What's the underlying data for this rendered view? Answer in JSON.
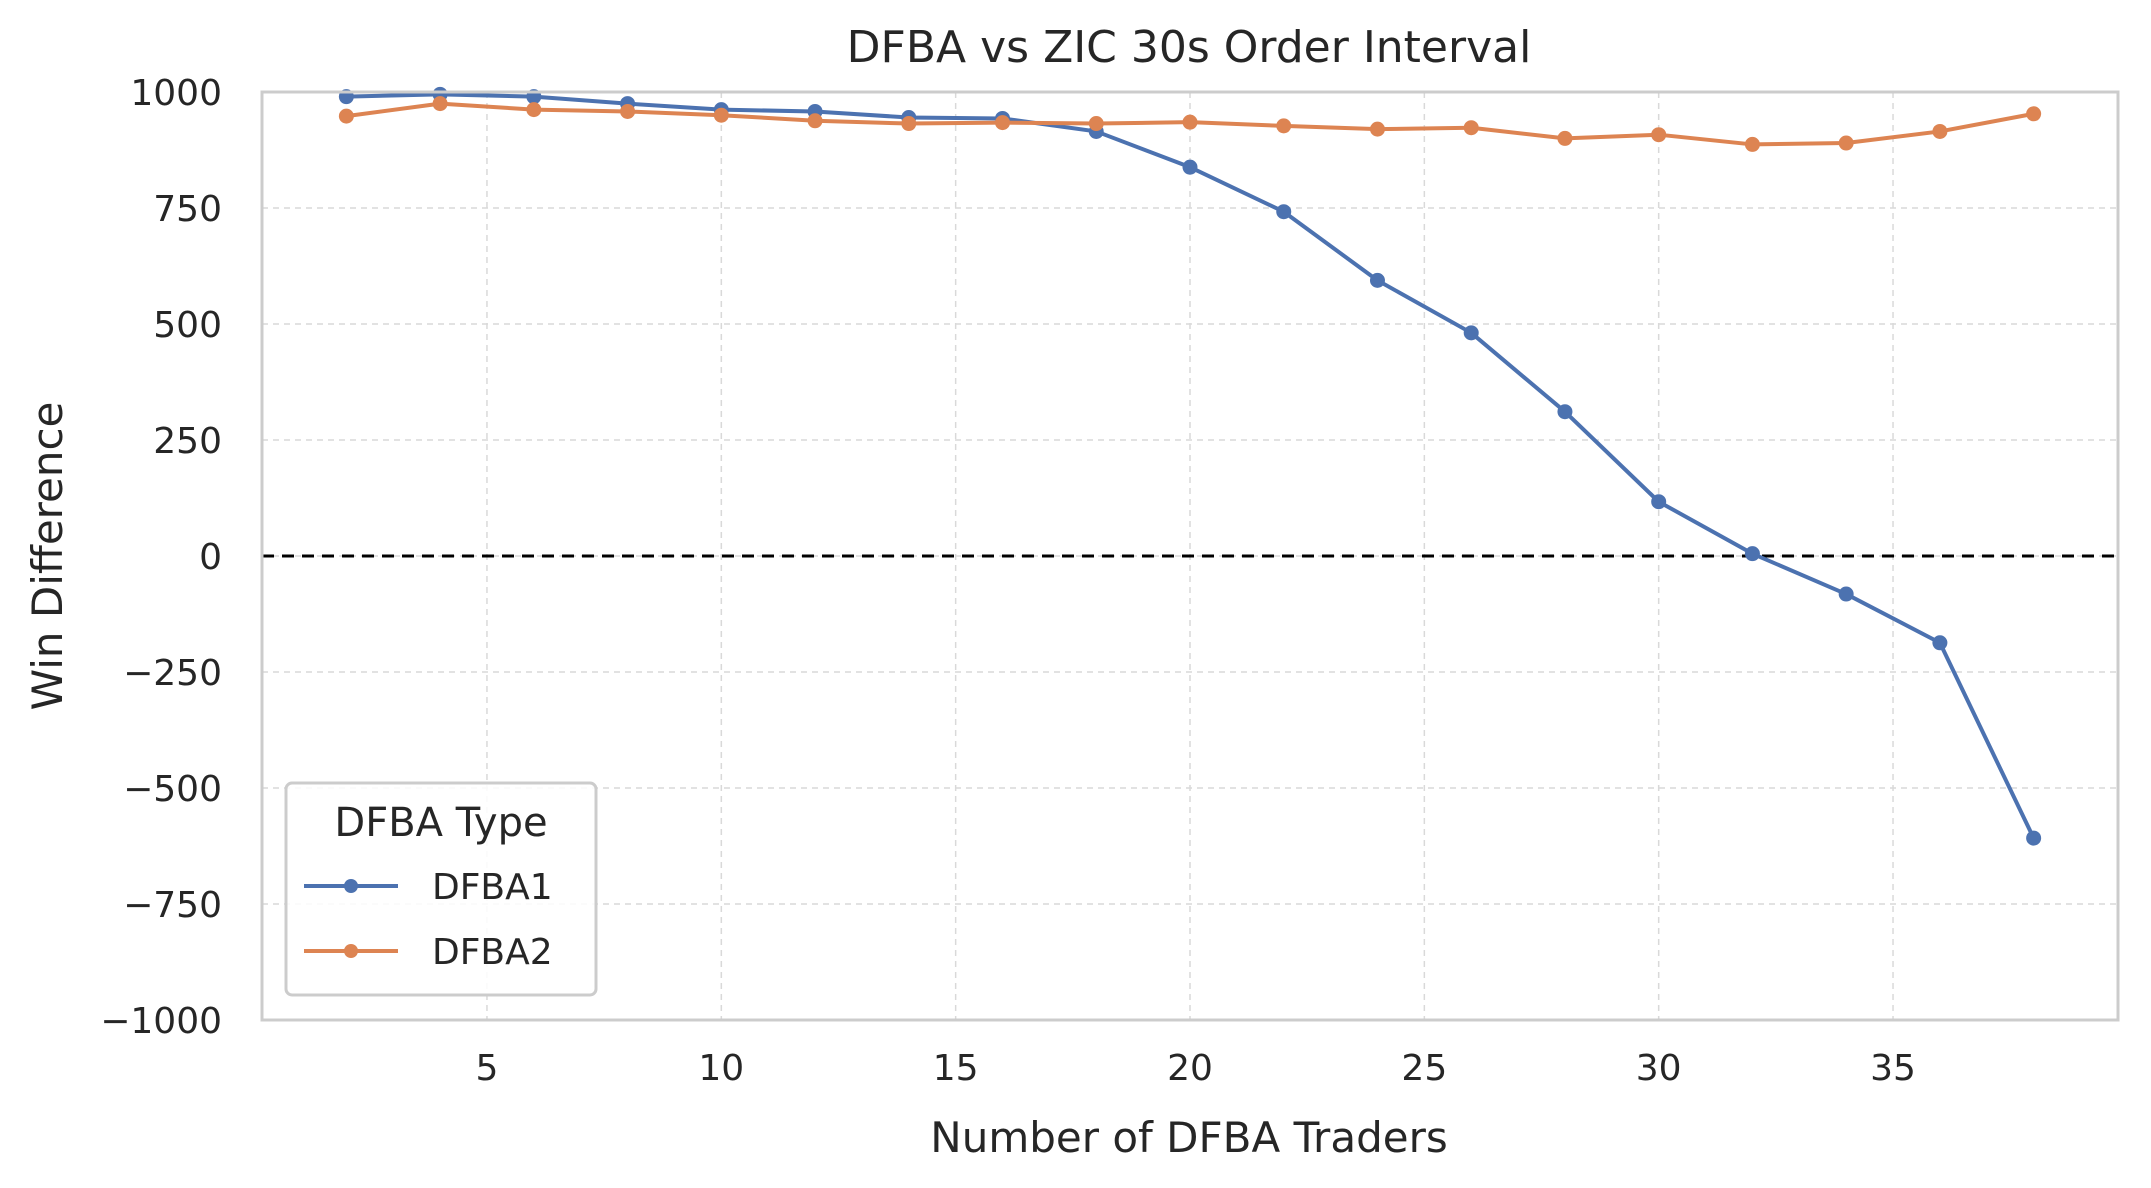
{
  "chart_data": {
    "type": "line",
    "title": "DFBA vs ZIC 30s Order Interval",
    "xlabel": "Number of DFBA Traders",
    "ylabel": "Win Difference",
    "xlim": [
      0.2,
      39.8
    ],
    "ylim": [
      -1000,
      1000
    ],
    "xticks": [
      5,
      10,
      15,
      20,
      25,
      30,
      35
    ],
    "yticks": [
      -1000,
      -750,
      -500,
      -250,
      0,
      250,
      500,
      750,
      1000
    ],
    "ytick_labels": [
      "−1000",
      "−750",
      "−500",
      "−250",
      "0",
      "250",
      "500",
      "750",
      "1000"
    ],
    "grid": true,
    "reference_line": {
      "y": 0,
      "style": "dashed",
      "color": "#000000"
    },
    "legend": {
      "title": "DFBA Type",
      "placement": "lower-left"
    },
    "x": [
      2,
      4,
      6,
      8,
      10,
      12,
      14,
      16,
      18,
      20,
      22,
      24,
      26,
      28,
      30,
      32,
      34,
      36,
      38
    ],
    "series": [
      {
        "name": "DFBA1",
        "color": "#4c72b0",
        "values": [
          990,
          995,
          990,
          975,
          962,
          958,
          945,
          943,
          915,
          838,
          742,
          594,
          481,
          311,
          117,
          5,
          -82,
          -187,
          -608
        ]
      },
      {
        "name": "DFBA2",
        "color": "#dd8452",
        "values": [
          948,
          975,
          962,
          958,
          950,
          938,
          932,
          934,
          932,
          935,
          927,
          920,
          923,
          900,
          908,
          887,
          890,
          915,
          953
        ]
      }
    ]
  }
}
